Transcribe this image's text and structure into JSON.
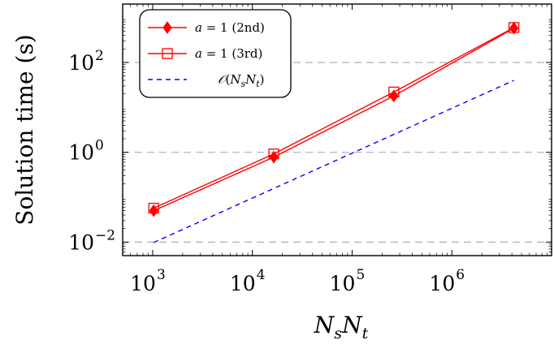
{
  "chart_data": {
    "type": "line",
    "xscale": "log",
    "yscale": "log",
    "xlim": [
      500,
      10000000
    ],
    "ylim": [
      0.005,
      2000
    ],
    "xlabel": "N_sN_t",
    "ylabel": "Solution time (s)",
    "x_ticks": [
      {
        "base": "10",
        "exp": "3",
        "value": 1000
      },
      {
        "base": "10",
        "exp": "4",
        "value": 10000
      },
      {
        "base": "10",
        "exp": "5",
        "value": 100000
      },
      {
        "base": "10",
        "exp": "6",
        "value": 1000000
      }
    ],
    "y_ticks": [
      {
        "base": "10",
        "exp": "−2",
        "value": 0.01
      },
      {
        "base": "10",
        "exp": "0",
        "value": 1
      },
      {
        "base": "10",
        "exp": "2",
        "value": 100
      }
    ],
    "y_grid": "major dashed",
    "legend_position": "top-left",
    "series": [
      {
        "name": "a = 1 (2nd)",
        "color": "#ff0000",
        "marker": "diamond-filled",
        "line": "solid",
        "x": [
          1024,
          16384,
          262144,
          4194304
        ],
        "y": [
          0.05,
          0.78,
          18,
          580
        ]
      },
      {
        "name": "a = 1 (3rd)",
        "color": "#ff0000",
        "marker": "square-open",
        "line": "solid",
        "x": [
          1024,
          16384,
          262144,
          4194304
        ],
        "y": [
          0.057,
          0.92,
          22,
          600
        ]
      },
      {
        "name": "𝒪(N_sN_t)",
        "color": "#0000ff",
        "marker": "none",
        "line": "dashed",
        "x": [
          1024,
          4194304
        ],
        "y": [
          0.0098,
          40
        ]
      }
    ]
  }
}
